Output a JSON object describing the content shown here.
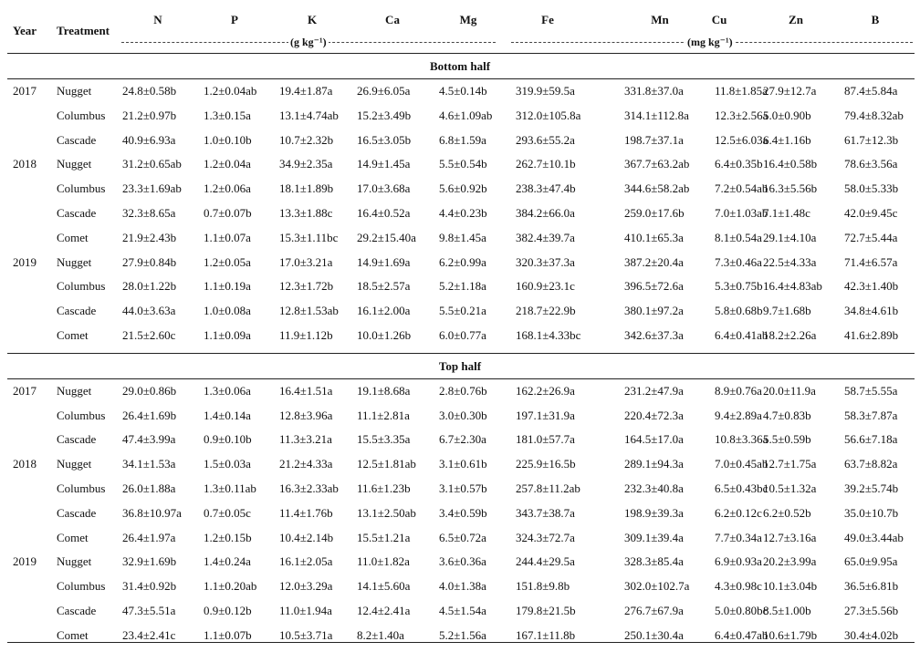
{
  "header": {
    "year": "Year",
    "treatment": "Treatment",
    "nutrients": [
      "N",
      "P",
      "K",
      "Ca",
      "Mg",
      "Fe",
      "Mn",
      "Cu",
      "Zn",
      "B"
    ],
    "unit_macro": "(g kg⁻¹)",
    "unit_micro": "(mg kg⁻¹)"
  },
  "sections": [
    {
      "title": "Bottom half",
      "rows": [
        {
          "year": "2017",
          "treatment": "Nugget",
          "values": [
            "24.8±0.58b",
            "1.2±0.04ab",
            "19.4±1.87a",
            "26.9±6.05a",
            "4.5±0.14b",
            "319.9±59.5a",
            "331.8±37.0a",
            "11.8±1.85a",
            "27.9±12.7a",
            "87.4±5.84a"
          ]
        },
        {
          "year": "",
          "treatment": "Columbus",
          "values": [
            "21.2±0.97b",
            "1.3±0.15a",
            "13.1±4.74ab",
            "15.2±3.49b",
            "4.6±1.09ab",
            "312.0±105.8a",
            "314.1±112.8a",
            "12.3±2.56a",
            "5.0±0.90b",
            "79.4±8.32ab"
          ]
        },
        {
          "year": "",
          "treatment": "Cascade",
          "values": [
            "40.9±6.93a",
            "1.0±0.10b",
            "10.7±2.32b",
            "16.5±3.05b",
            "6.8±1.59a",
            "293.6±55.2a",
            "198.7±37.1a",
            "12.5±6.03a",
            "6.4±1.16b",
            "61.7±12.3b"
          ]
        },
        {
          "year": "2018",
          "treatment": "Nugget",
          "values": [
            "31.2±0.65ab",
            "1.2±0.04a",
            "34.9±2.35a",
            "14.9±1.45a",
            "5.5±0.54b",
            "262.7±10.1b",
            "367.7±63.2ab",
            "6.4±0.35b",
            "16.4±0.58b",
            "78.6±3.56a"
          ]
        },
        {
          "year": "",
          "treatment": "Columbus",
          "values": [
            "23.3±1.69ab",
            "1.2±0.06a",
            "18.1±1.89b",
            "17.0±3.68a",
            "5.6±0.92b",
            "238.3±47.4b",
            "344.6±58.2ab",
            "7.2±0.54ab",
            "16.3±5.56b",
            "58.0±5.33b"
          ]
        },
        {
          "year": "",
          "treatment": "Cascade",
          "values": [
            "32.3±8.65a",
            "0.7±0.07b",
            "13.3±1.88c",
            "16.4±0.52a",
            "4.4±0.23b",
            "384.2±66.0a",
            "259.0±17.6b",
            "7.0±1.03ab",
            "7.1±1.48c",
            "42.0±9.45c"
          ]
        },
        {
          "year": "",
          "treatment": "Comet",
          "values": [
            "21.9±2.43b",
            "1.1±0.07a",
            "15.3±1.11bc",
            "29.2±15.40a",
            "9.8±1.45a",
            "382.4±39.7a",
            "410.1±65.3a",
            "8.1±0.54a",
            "29.1±4.10a",
            "72.7±5.44a"
          ]
        },
        {
          "year": "2019",
          "treatment": "Nugget",
          "values": [
            "27.9±0.84b",
            "1.2±0.05a",
            "17.0±3.21a",
            "14.9±1.69a",
            "6.2±0.99a",
            "320.3±37.3a",
            "387.2±20.4a",
            "7.3±0.46a",
            "22.5±4.33a",
            "71.4±6.57a"
          ]
        },
        {
          "year": "",
          "treatment": "Columbus",
          "values": [
            "28.0±1.22b",
            "1.1±0.19a",
            "12.3±1.72b",
            "18.5±2.57a",
            "5.2±1.18a",
            "160.9±23.1c",
            "396.5±72.6a",
            "5.3±0.75b",
            "16.4±4.83ab",
            "42.3±1.40b"
          ]
        },
        {
          "year": "",
          "treatment": "Cascade",
          "values": [
            "44.0±3.63a",
            "1.0±0.08a",
            "12.8±1.53ab",
            "16.1±2.00a",
            "5.5±0.21a",
            "218.7±22.9b",
            "380.1±97.2a",
            "5.8±0.68b",
            "9.7±1.68b",
            "34.8±4.61b"
          ]
        },
        {
          "year": "",
          "treatment": "Comet",
          "values": [
            "21.5±2.60c",
            "1.1±0.09a",
            "11.9±1.12b",
            "10.0±1.26b",
            "6.0±0.77a",
            "168.1±4.33bc",
            "342.6±37.3a",
            "6.4±0.41ab",
            "18.2±2.26a",
            "41.6±2.89b"
          ]
        }
      ]
    },
    {
      "title": "Top half",
      "rows": [
        {
          "year": "2017",
          "treatment": "Nugget",
          "values": [
            "29.0±0.86b",
            "1.3±0.06a",
            "16.4±1.51a",
            "19.1±8.68a",
            "2.8±0.76b",
            "162.2±26.9a",
            "231.2±47.9a",
            "8.9±0.76a",
            "20.0±11.9a",
            "58.7±5.55a"
          ]
        },
        {
          "year": "",
          "treatment": "Columbus",
          "values": [
            "26.4±1.69b",
            "1.4±0.14a",
            "12.8±3.96a",
            "11.1±2.81a",
            "3.0±0.30b",
            "197.1±31.9a",
            "220.4±72.3a",
            "9.4±2.89a",
            "4.7±0.83b",
            "58.3±7.87a"
          ]
        },
        {
          "year": "",
          "treatment": "Cascade",
          "values": [
            "47.4±3.99a",
            "0.9±0.10b",
            "11.3±3.21a",
            "15.5±3.35a",
            "6.7±2.30a",
            "181.0±57.7a",
            "164.5±17.0a",
            "10.8±3.36a",
            "5.5±0.59b",
            "56.6±7.18a"
          ]
        },
        {
          "year": "2018",
          "treatment": "Nugget",
          "values": [
            "34.1±1.53a",
            "1.5±0.03a",
            "21.2±4.33a",
            "12.5±1.81ab",
            "3.1±0.61b",
            "225.9±16.5b",
            "289.1±94.3a",
            "7.0±0.45ab",
            "12.7±1.75a",
            "63.7±8.82a"
          ]
        },
        {
          "year": "",
          "treatment": "Columbus",
          "values": [
            "26.0±1.88a",
            "1.3±0.11ab",
            "16.3±2.33ab",
            "11.6±1.23b",
            "3.1±0.57b",
            "257.8±11.2ab",
            "232.3±40.8a",
            "6.5±0.43bc",
            "10.5±1.32a",
            "39.2±5.74b"
          ]
        },
        {
          "year": "",
          "treatment": "Cascade",
          "values": [
            "36.8±10.97a",
            "0.7±0.05c",
            "11.4±1.76b",
            "13.1±2.50ab",
            "3.4±0.59b",
            "343.7±38.7a",
            "198.9±39.3a",
            "6.2±0.12c",
            "6.2±0.52b",
            "35.0±10.7b"
          ]
        },
        {
          "year": "",
          "treatment": "Comet",
          "values": [
            "26.4±1.97a",
            "1.2±0.15b",
            "10.4±2.14b",
            "15.5±1.21a",
            "6.5±0.72a",
            "324.3±72.7a",
            "309.1±39.4a",
            "7.7±0.34a",
            "12.7±3.16a",
            "49.0±3.44ab"
          ]
        },
        {
          "year": "2019",
          "treatment": "Nugget",
          "values": [
            "32.9±1.69b",
            "1.4±0.24a",
            "16.1±2.05a",
            "11.0±1.82a",
            "3.6±0.36a",
            "244.4±29.5a",
            "328.3±85.4a",
            "6.9±0.93a",
            "20.2±3.99a",
            "65.0±9.95a"
          ]
        },
        {
          "year": "",
          "treatment": "Columbus",
          "values": [
            "31.4±0.92b",
            "1.1±0.20ab",
            "12.0±3.29a",
            "14.1±5.60a",
            "4.0±1.38a",
            "151.8±9.8b",
            "302.0±102.7a",
            "4.3±0.98c",
            "10.1±3.04b",
            "36.5±6.81b"
          ]
        },
        {
          "year": "",
          "treatment": "Cascade",
          "values": [
            "47.3±5.51a",
            "0.9±0.12b",
            "11.0±1.94a",
            "12.4±2.41a",
            "4.5±1.54a",
            "179.8±21.5b",
            "276.7±67.9a",
            "5.0±0.80bc",
            "8.5±1.00b",
            "27.3±5.56b"
          ]
        },
        {
          "year": "",
          "treatment": "Comet",
          "values": [
            "23.4±2.41c",
            "1.1±0.07b",
            "10.5±3.71a",
            "8.2±1.40a",
            "5.2±1.56a",
            "167.1±11.8b",
            "250.1±30.4a",
            "6.4±0.47ab",
            "10.6±1.79b",
            "30.4±4.02b"
          ]
        }
      ]
    }
  ]
}
